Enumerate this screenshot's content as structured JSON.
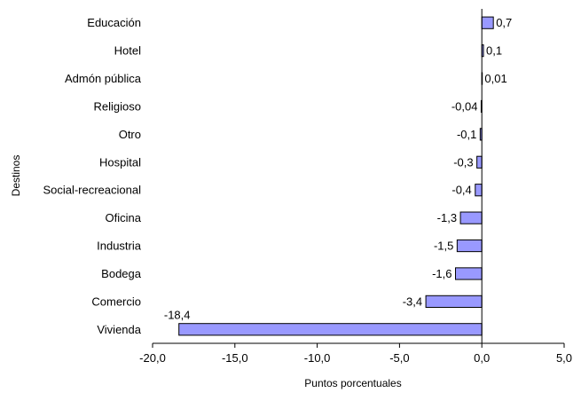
{
  "colors": {
    "bar_fill": "#9999ff",
    "bar_stroke": "#000000",
    "axis": "#000000",
    "background": "#ffffff"
  },
  "chart_data": {
    "type": "bar",
    "orientation": "horizontal",
    "title": "",
    "xlabel": "Puntos porcentuales",
    "ylabel": "Destinos",
    "xlim": [
      -20,
      5
    ],
    "x_ticks": [
      -20,
      -15,
      -10,
      -5,
      0,
      5
    ],
    "x_tick_labels": [
      "-20,0",
      "-15,0",
      "-10,0",
      "-5,0",
      "0,0",
      "5,0"
    ],
    "grid": false,
    "legend": "none",
    "categories": [
      "Educación",
      "Hotel",
      "Admón pública",
      "Religioso",
      "Otro",
      "Hospital",
      "Social-recreacional",
      "Oficina",
      "Industria",
      "Bodega",
      "Comercio",
      "Vivienda"
    ],
    "values": [
      0.7,
      0.1,
      0.01,
      -0.04,
      -0.1,
      -0.3,
      -0.4,
      -1.3,
      -1.5,
      -1.6,
      -3.4,
      -18.4
    ],
    "value_labels": [
      "0,7",
      "0,1",
      "0,01",
      "-0,04",
      "-0,1",
      "-0,3",
      "-0,4",
      "-1,3",
      "-1,5",
      "-1,6",
      "-3,4",
      "-18,4"
    ]
  }
}
